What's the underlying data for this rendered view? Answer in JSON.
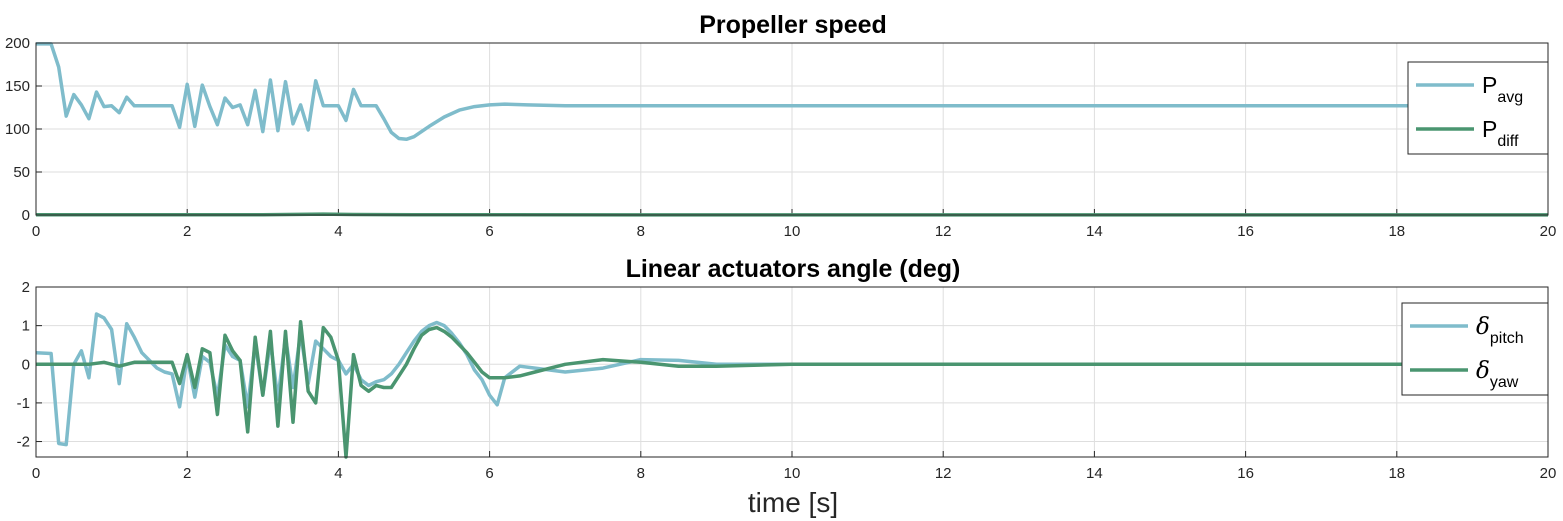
{
  "colors": {
    "avg": "#7fbccb",
    "diff": "#4a9570",
    "grid": "#dedede",
    "axis": "#262626"
  },
  "chart_data": [
    {
      "type": "line",
      "title": "Propeller speed",
      "xlim": [
        0,
        20
      ],
      "ylim": [
        0,
        200
      ],
      "xticks": [
        "0",
        "2",
        "4",
        "6",
        "8",
        "10",
        "12",
        "14",
        "16",
        "18",
        "20"
      ],
      "yticks": [
        "0",
        "50",
        "100",
        "150",
        "200"
      ],
      "grid": true,
      "legend_placement": "right",
      "legend": [
        {
          "main": "P",
          "sub": "avg"
        },
        {
          "main": "P",
          "sub": "diff"
        }
      ],
      "series": [
        {
          "name": "P_avg",
          "x": [
            0,
            0.1,
            0.2,
            0.3,
            0.4,
            0.5,
            0.6,
            0.7,
            0.8,
            0.9,
            1.0,
            1.1,
            1.2,
            1.3,
            1.4,
            1.5,
            1.6,
            1.7,
            1.8,
            1.9,
            2.0,
            2.1,
            2.2,
            2.3,
            2.4,
            2.5,
            2.6,
            2.7,
            2.8,
            2.9,
            3.0,
            3.1,
            3.2,
            3.3,
            3.4,
            3.5,
            3.6,
            3.7,
            3.8,
            3.9,
            4.0,
            4.1,
            4.2,
            4.3,
            4.4,
            4.5,
            4.6,
            4.7,
            4.8,
            4.9,
            5.0,
            5.2,
            5.4,
            5.6,
            5.8,
            6.0,
            6.2,
            6.5,
            7.0,
            8.0,
            10,
            12,
            14,
            16,
            18,
            20
          ],
          "values": [
            199,
            199,
            199,
            172,
            115,
            140,
            128,
            112,
            143,
            126,
            127,
            119,
            137,
            127,
            127,
            127,
            127,
            127,
            127,
            102,
            152,
            103,
            151,
            126,
            105,
            136,
            125,
            128,
            105,
            145,
            97,
            157,
            98,
            155,
            106,
            128,
            99,
            156,
            127,
            127,
            127,
            110,
            146,
            127,
            127,
            127,
            112,
            96,
            89,
            88,
            91,
            103,
            114,
            122,
            126,
            128,
            129,
            128,
            127,
            127,
            127,
            127,
            127,
            127,
            127,
            127
          ]
        },
        {
          "name": "P_diff",
          "x": [
            0,
            2,
            3,
            3.8,
            4.2,
            5,
            6,
            8,
            10,
            20
          ],
          "values": [
            0.3,
            0.4,
            0.4,
            1.0,
            0.6,
            0.2,
            0.3,
            0.1,
            0.1,
            0.1
          ]
        }
      ]
    },
    {
      "type": "line",
      "title": "Linear actuators angle (deg)",
      "xlabel": "time [s]",
      "xlim": [
        0,
        20
      ],
      "ylim": [
        -2.4,
        2
      ],
      "xticks": [
        "0",
        "2",
        "4",
        "6",
        "8",
        "10",
        "12",
        "14",
        "16",
        "18",
        "20"
      ],
      "yticks": [
        "-2",
        "-1",
        "0",
        "1",
        "2"
      ],
      "grid": true,
      "legend_placement": "right",
      "legend": [
        {
          "main": "δ",
          "sub": "pitch"
        },
        {
          "main": "δ",
          "sub": "yaw"
        }
      ],
      "series": [
        {
          "name": "delta_pitch",
          "x": [
            0,
            0.2,
            0.3,
            0.4,
            0.5,
            0.6,
            0.7,
            0.8,
            0.9,
            1.0,
            1.1,
            1.2,
            1.3,
            1.4,
            1.5,
            1.6,
            1.7,
            1.8,
            1.9,
            2.0,
            2.1,
            2.2,
            2.3,
            2.4,
            2.5,
            2.6,
            2.7,
            2.8,
            2.9,
            3.0,
            3.1,
            3.2,
            3.3,
            3.4,
            3.5,
            3.6,
            3.7,
            3.8,
            3.9,
            4.0,
            4.1,
            4.2,
            4.3,
            4.4,
            4.5,
            4.6,
            4.7,
            4.8,
            4.9,
            5.0,
            5.1,
            5.2,
            5.3,
            5.4,
            5.5,
            5.6,
            5.7,
            5.8,
            5.9,
            6.0,
            6.1,
            6.2,
            6.4,
            6.6,
            7.0,
            7.5,
            8.0,
            8.5,
            9.0,
            10,
            12,
            20
          ],
          "values": [
            0.3,
            0.28,
            -2.05,
            -2.08,
            0,
            0.35,
            -0.35,
            1.3,
            1.2,
            0.9,
            -0.5,
            1.05,
            0.7,
            0.3,
            0.1,
            -0.1,
            -0.2,
            -0.25,
            -1.1,
            0.2,
            -0.85,
            0.2,
            0.05,
            -0.85,
            0.5,
            0.2,
            0.1,
            -1.1,
            0.55,
            -0.8,
            0.6,
            -0.9,
            0.7,
            -0.6,
            0.8,
            -0.5,
            0.6,
            0.4,
            0.2,
            0.1,
            -0.25,
            0,
            -0.4,
            -0.55,
            -0.45,
            -0.4,
            -0.25,
            0,
            0.3,
            0.6,
            0.85,
            1.0,
            1.08,
            1.0,
            0.8,
            0.55,
            0.25,
            -0.15,
            -0.4,
            -0.8,
            -1.05,
            -0.35,
            -0.05,
            -0.1,
            -0.2,
            -0.1,
            0.12,
            0.1,
            0.0,
            0.0,
            0.0,
            0.0
          ]
        },
        {
          "name": "delta_yaw",
          "x": [
            0,
            0.5,
            0.7,
            0.9,
            1.1,
            1.3,
            1.6,
            1.8,
            1.9,
            2.0,
            2.1,
            2.2,
            2.3,
            2.4,
            2.5,
            2.6,
            2.7,
            2.8,
            2.9,
            3.0,
            3.1,
            3.2,
            3.3,
            3.4,
            3.5,
            3.6,
            3.7,
            3.8,
            3.9,
            4.0,
            4.1,
            4.2,
            4.3,
            4.4,
            4.5,
            4.6,
            4.7,
            4.8,
            4.9,
            5.0,
            5.1,
            5.2,
            5.3,
            5.4,
            5.5,
            5.6,
            5.7,
            5.8,
            5.9,
            6.0,
            6.1,
            6.2,
            6.4,
            6.6,
            7.0,
            7.5,
            8.0,
            8.5,
            9.0,
            10,
            12,
            20
          ],
          "values": [
            0,
            0,
            0,
            0.05,
            -0.05,
            0.05,
            0.05,
            0.05,
            -0.5,
            0.25,
            -0.6,
            0.4,
            0.3,
            -1.3,
            0.75,
            0.35,
            0.1,
            -1.75,
            0.7,
            -0.8,
            0.85,
            -1.6,
            0.85,
            -1.5,
            1.1,
            -0.7,
            -1.0,
            0.95,
            0.7,
            0.1,
            -2.4,
            0.25,
            -0.55,
            -0.7,
            -0.55,
            -0.6,
            -0.6,
            -0.3,
            0.0,
            0.4,
            0.75,
            0.9,
            0.95,
            0.85,
            0.7,
            0.5,
            0.3,
            0.05,
            -0.2,
            -0.35,
            -0.35,
            -0.35,
            -0.3,
            -0.2,
            0.0,
            0.12,
            0.05,
            -0.05,
            -0.05,
            0.0,
            0.0,
            0.0
          ]
        }
      ]
    }
  ]
}
